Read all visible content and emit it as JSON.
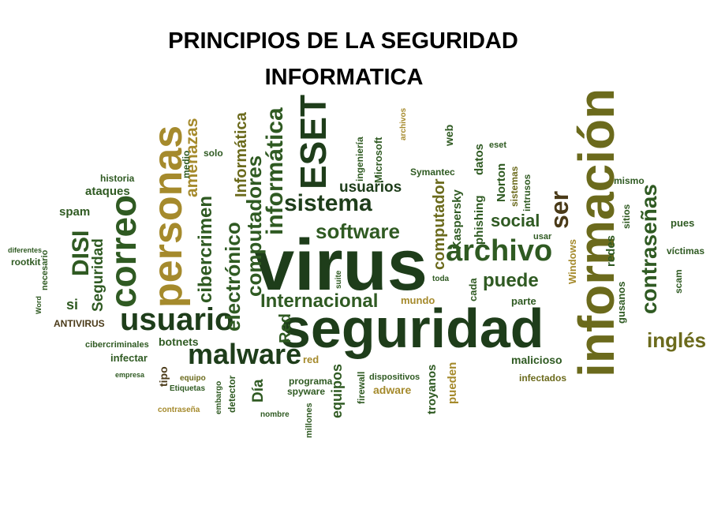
{
  "title": {
    "line1": "PRINCIPIOS DE LA SEGURIDAD",
    "line2": "INFORMATICA"
  },
  "colors": {
    "dark_green": "#1e3d1a",
    "green": "#2f5a22",
    "olive": "#6b6a1c",
    "gold": "#a58a2c",
    "khaki": "#b8a24a",
    "brown": "#4a3a18"
  },
  "words": [
    {
      "text": "virus"
    },
    {
      "text": "seguridad"
    },
    {
      "text": "información"
    },
    {
      "text": "usuario"
    },
    {
      "text": "personas"
    },
    {
      "text": "correo"
    },
    {
      "text": "archivo"
    },
    {
      "text": "malware"
    },
    {
      "text": "ESET"
    },
    {
      "text": "sistema"
    },
    {
      "text": "software"
    },
    {
      "text": "Internacional"
    },
    {
      "text": "informática"
    },
    {
      "text": "computadores"
    },
    {
      "text": "contraseñas"
    },
    {
      "text": "inglés"
    },
    {
      "text": "DISI"
    },
    {
      "text": "electrónico"
    },
    {
      "text": "cibercrimen"
    },
    {
      "text": "amenazas"
    },
    {
      "text": "Informática"
    },
    {
      "text": "usuarios"
    },
    {
      "text": "puede"
    },
    {
      "text": "social"
    },
    {
      "text": "ser"
    },
    {
      "text": "computador"
    },
    {
      "text": "Seguridad"
    },
    {
      "text": "spam"
    },
    {
      "text": "ataques"
    },
    {
      "text": "historia"
    },
    {
      "text": "rootkit"
    },
    {
      "text": "ANTIVIRUS"
    },
    {
      "text": "cibercriminales"
    },
    {
      "text": "botnets"
    },
    {
      "text": "infectar"
    },
    {
      "text": "tipo"
    },
    {
      "text": "Día"
    },
    {
      "text": "Red"
    },
    {
      "text": "mundo"
    },
    {
      "text": "parte"
    },
    {
      "text": "equipos"
    },
    {
      "text": "red"
    },
    {
      "text": "programa"
    },
    {
      "text": "spyware"
    },
    {
      "text": "detector"
    },
    {
      "text": "millones"
    },
    {
      "text": "firewall"
    },
    {
      "text": "adware"
    },
    {
      "text": "troyanos"
    },
    {
      "text": "pueden"
    },
    {
      "text": "malicioso"
    },
    {
      "text": "infectados"
    },
    {
      "text": "dispositivos"
    },
    {
      "text": "Kaspersky"
    },
    {
      "text": "phishing"
    },
    {
      "text": "datos"
    },
    {
      "text": "Norton"
    },
    {
      "text": "intrusos"
    },
    {
      "text": "sistemas"
    },
    {
      "text": "Windows"
    },
    {
      "text": "redes"
    },
    {
      "text": "sitios"
    },
    {
      "text": "mismo"
    },
    {
      "text": "pues"
    },
    {
      "text": "víctimas"
    },
    {
      "text": "scam"
    },
    {
      "text": "gusanos"
    },
    {
      "text": "web"
    },
    {
      "text": "Microsoft"
    },
    {
      "text": "ingeniería"
    },
    {
      "text": "Symantec"
    },
    {
      "text": "eset"
    },
    {
      "text": "medio"
    },
    {
      "text": "solo"
    },
    {
      "text": "necesario"
    },
    {
      "text": "si"
    },
    {
      "text": "usar"
    },
    {
      "text": "cada"
    },
    {
      "text": "toda"
    },
    {
      "text": "suite"
    },
    {
      "text": "nombre"
    },
    {
      "text": "embargo"
    },
    {
      "text": "equipo"
    },
    {
      "text": "Etiquetas"
    },
    {
      "text": "contraseña"
    },
    {
      "text": "empresa"
    },
    {
      "text": "diferentes"
    },
    {
      "text": "archivos"
    },
    {
      "text": "Word"
    }
  ]
}
